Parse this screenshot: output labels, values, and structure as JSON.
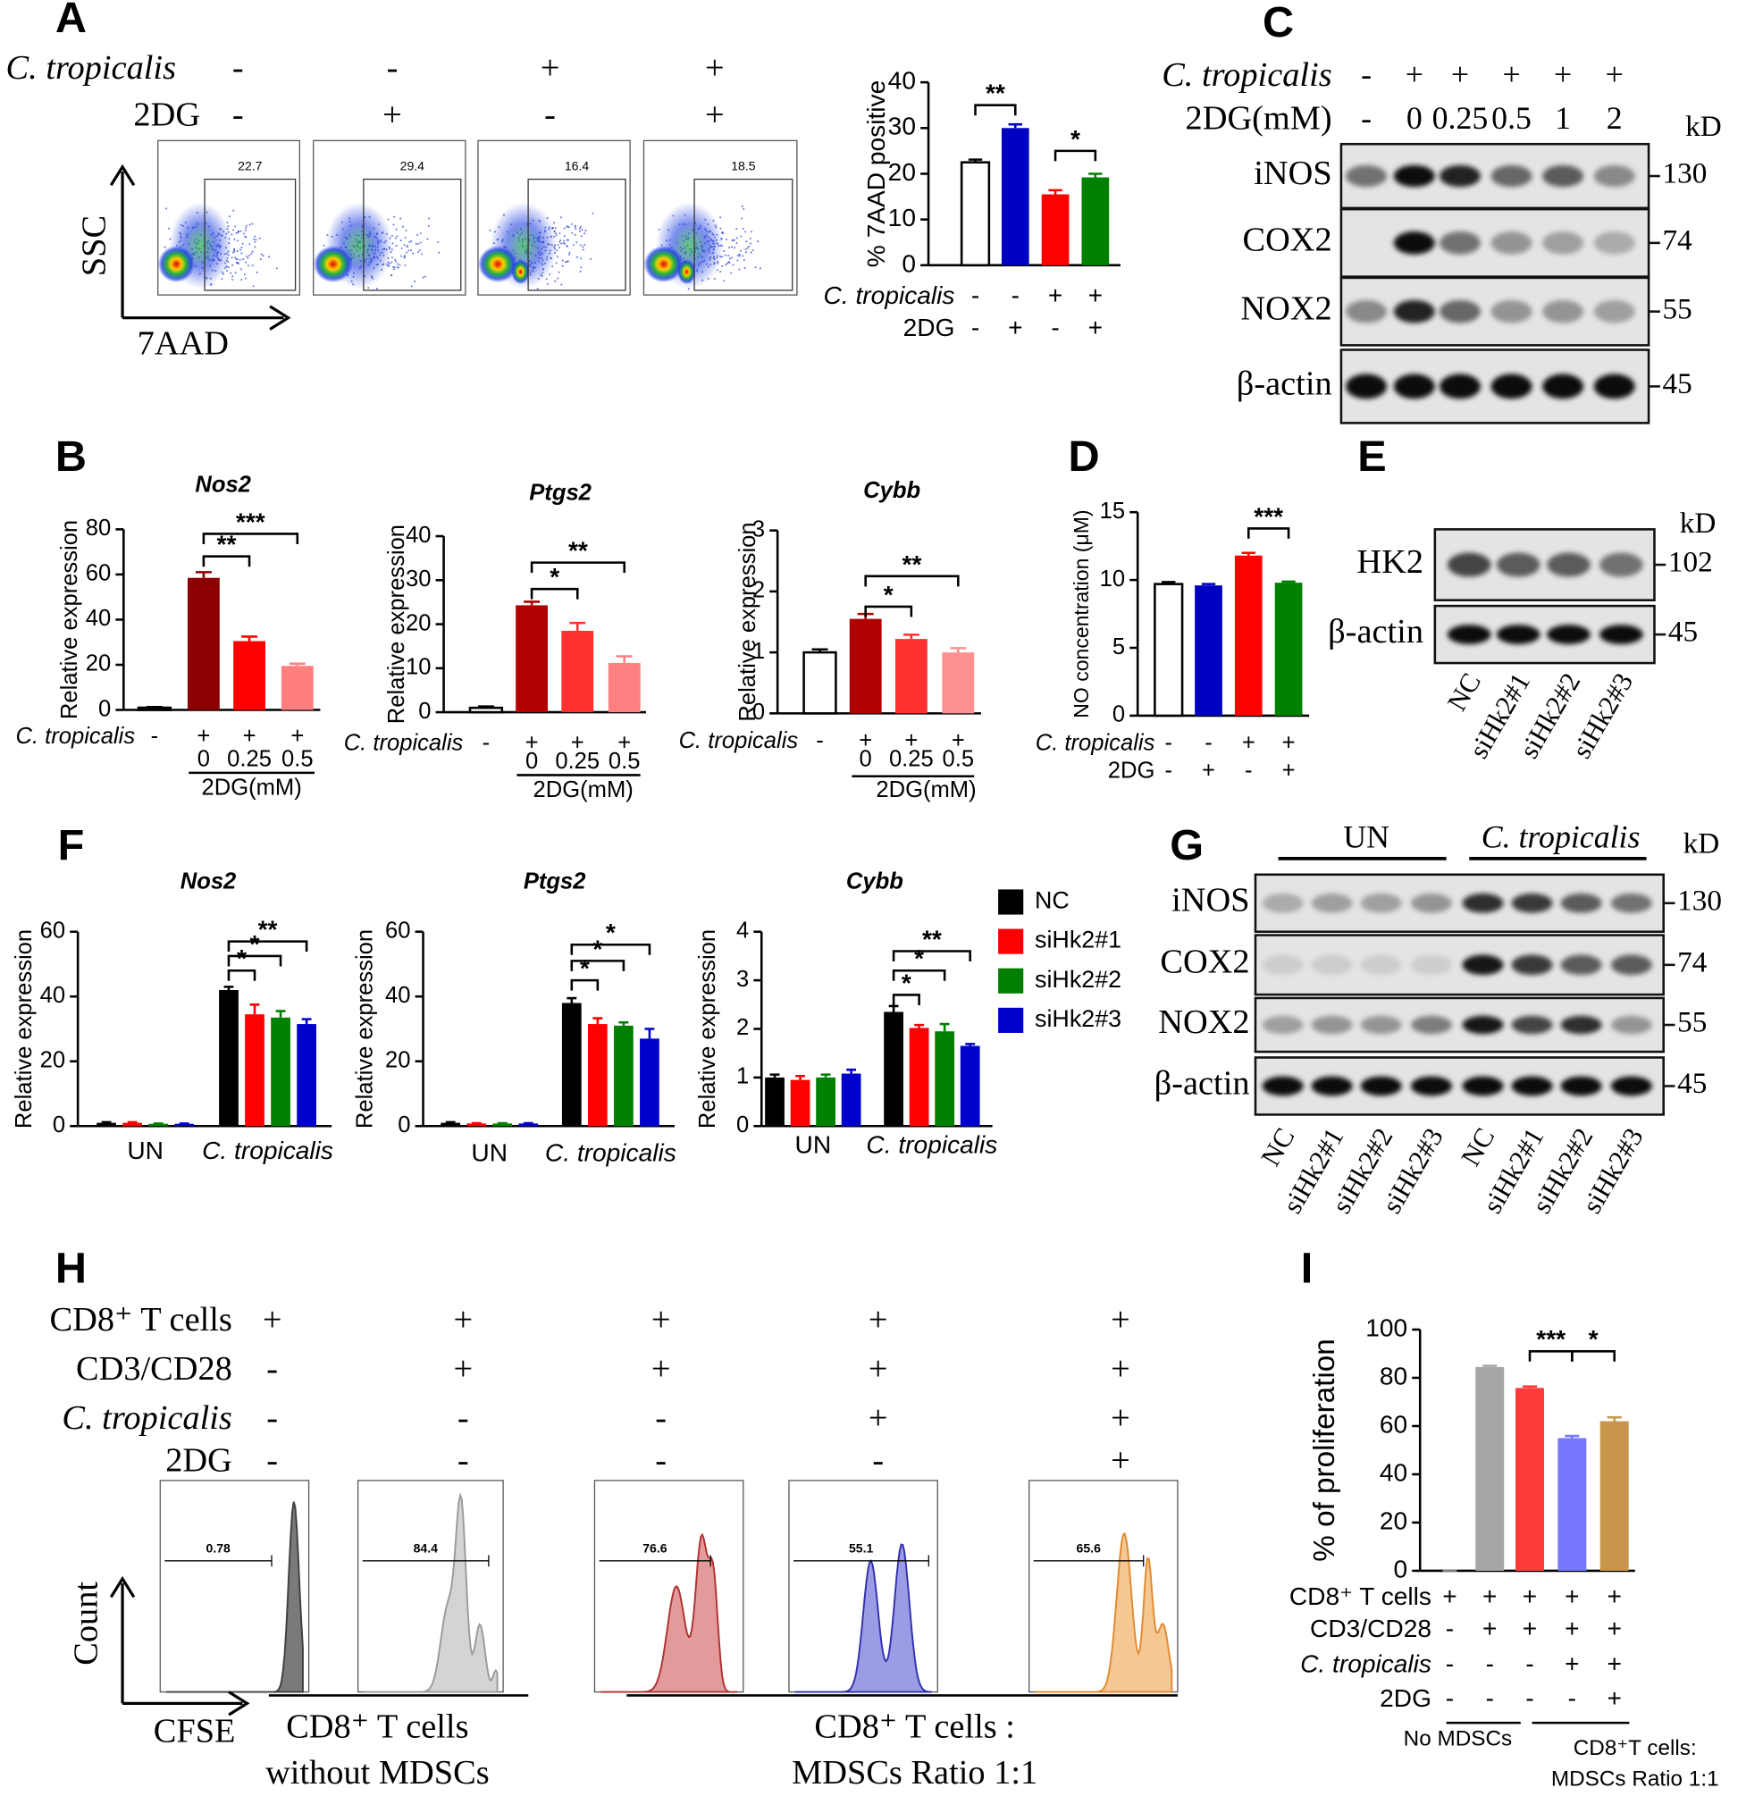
{
  "panel_labels": [
    "A",
    "B",
    "C",
    "D",
    "E",
    "F",
    "G",
    "H",
    "I"
  ],
  "flow_A": {
    "conditions": [
      {
        "label": "C. tropicalis",
        "signs": [
          "-",
          "-",
          "+",
          "+"
        ]
      },
      {
        "label": "2DG",
        "signs": [
          "-",
          "+",
          "-",
          "+"
        ]
      }
    ],
    "gates": [
      22.7,
      29.4,
      16.4,
      18.5
    ],
    "y_axis": "SSC",
    "x_axis": "7AAD"
  },
  "blot_C": {
    "conditions": [
      {
        "label": "C. tropicalis",
        "signs": [
          "-",
          "+",
          "+",
          "+",
          "+",
          "+"
        ]
      },
      {
        "label": "2DG(mM)",
        "signs": [
          "-",
          0,
          0.25,
          0.5,
          1,
          2
        ]
      }
    ],
    "unit": "kD",
    "rows": [
      {
        "label": "iNOS",
        "kd": 130
      },
      {
        "label": "COX2",
        "kd": 74
      },
      {
        "label": "NOX2",
        "kd": 55
      },
      {
        "label": "β-actin",
        "kd": 45
      }
    ]
  },
  "blot_E": {
    "unit": "kD",
    "rows": [
      {
        "label": "HK2",
        "kd": 102
      },
      {
        "label": "β-actin",
        "kd": 45
      }
    ],
    "lanes": [
      "NC",
      "siHk2#1",
      "siHk2#2",
      "siHk2#3"
    ]
  },
  "blot_G": {
    "groups": [
      "UN",
      "C. tropicalis"
    ],
    "unit": "kD",
    "rows": [
      {
        "label": "iNOS",
        "kd": 130
      },
      {
        "label": "COX2",
        "kd": 74
      },
      {
        "label": "NOX2",
        "kd": 55
      },
      {
        "label": "β-actin",
        "kd": 45
      }
    ],
    "lanes": [
      "NC",
      "siHk2#1",
      "siHk2#2",
      "siHk2#3",
      "NC",
      "siHk2#1",
      "siHk2#2",
      "siHk2#3"
    ]
  },
  "flow_H": {
    "conditions": [
      {
        "label": "CD8⁺ T cells",
        "signs": [
          "+",
          "+",
          "+",
          "+",
          "+"
        ]
      },
      {
        "label": "CD3/CD28",
        "signs": [
          "-",
          "+",
          "+",
          "+",
          "+"
        ]
      },
      {
        "label": "C. tropicalis",
        "signs": [
          "-",
          "-",
          "-",
          "+",
          "+"
        ]
      },
      {
        "label": "2DG",
        "signs": [
          "-",
          "-",
          "-",
          "-",
          "+"
        ]
      }
    ],
    "gates": [
      0.78,
      84.4,
      76.6,
      55.1,
      65.6
    ],
    "y_axis": "Count",
    "x_axis": "CFSE",
    "group_labels": [
      [
        "CD8⁺ T cells",
        "without MDSCs"
      ],
      [
        "CD8⁺ T cells :",
        "MDSCs Ratio 1:1"
      ]
    ]
  },
  "chart_data": [
    {
      "type": "bar",
      "ylabel": "% 7AAD positive",
      "ylim": [
        0,
        40
      ],
      "yticks": [
        0,
        10,
        20,
        30,
        40
      ],
      "values": [
        22.5,
        30,
        15.5,
        19.2
      ],
      "errors": [
        0.6,
        0.8,
        0.9,
        0.8
      ],
      "colors": [
        "#ffffff",
        "#0000c0",
        "#ff0000",
        "#008000"
      ],
      "conditions": [
        {
          "label": "C. tropicalis",
          "signs": [
            "-",
            "-",
            "+",
            "+"
          ]
        },
        {
          "label": "2DG",
          "signs": [
            "-",
            "+",
            "-",
            "+"
          ]
        }
      ],
      "annotations": [
        "**",
        "*"
      ]
    },
    {
      "type": "bar",
      "title": "Nos2",
      "ylabel": "Relative expression",
      "ylim": [
        0,
        80
      ],
      "yticks": [
        0,
        20,
        40,
        60,
        80
      ],
      "values": [
        1,
        58.5,
        30.5,
        19.5
      ],
      "errors": [
        0.3,
        2.5,
        2,
        1
      ],
      "colors": [
        "#ffffff",
        "#8b0000",
        "#ff0000",
        "#ff7f7f"
      ],
      "conditions": [
        {
          "label": "C. tropicalis",
          "signs": [
            "-",
            "+",
            "+",
            "+"
          ]
        }
      ],
      "doses": [
        null,
        0,
        0.25,
        0.5
      ],
      "dose_label": "2DG(mM)",
      "annotations": [
        "**",
        "***"
      ]
    },
    {
      "type": "bar",
      "title": "Ptgs2",
      "ylabel": "Relative expression",
      "ylim": [
        0,
        40
      ],
      "yticks": [
        0,
        10,
        20,
        30,
        40
      ],
      "values": [
        1,
        24.3,
        18.5,
        11.2
      ],
      "errors": [
        0.3,
        0.8,
        1.8,
        1.5
      ],
      "colors": [
        "#ffffff",
        "#b00000",
        "#ff3030",
        "#ff8080"
      ],
      "conditions": [
        {
          "label": "C. tropicalis",
          "signs": [
            "-",
            "+",
            "+",
            "+"
          ]
        }
      ],
      "doses": [
        null,
        0,
        0.25,
        0.5
      ],
      "dose_label": "2DG(mM)",
      "annotations": [
        "*",
        "**"
      ]
    },
    {
      "type": "bar",
      "title": "Cybb",
      "ylabel": "Relative expression",
      "ylim": [
        0,
        3
      ],
      "yticks": [
        0,
        1,
        2,
        3
      ],
      "values": [
        1.0,
        1.55,
        1.22,
        1.0
      ],
      "errors": [
        0.05,
        0.08,
        0.07,
        0.07
      ],
      "colors": [
        "#ffffff",
        "#b00000",
        "#ff3030",
        "#ff9090"
      ],
      "conditions": [
        {
          "label": "C. tropicalis",
          "signs": [
            "-",
            "+",
            "+",
            "+"
          ]
        }
      ],
      "doses": [
        null,
        0,
        0.25,
        0.5
      ],
      "dose_label": "2DG(mM)",
      "annotations": [
        "*",
        "**"
      ]
    },
    {
      "type": "bar",
      "ylabel": "NO concentration (μM)",
      "ylim": [
        0,
        15
      ],
      "yticks": [
        0,
        5,
        10,
        15
      ],
      "values": [
        9.7,
        9.6,
        11.8,
        9.8
      ],
      "errors": [
        0.15,
        0.1,
        0.2,
        0.08
      ],
      "colors": [
        "#ffffff",
        "#0000c0",
        "#ff0000",
        "#008000"
      ],
      "conditions": [
        {
          "label": "C. tropicalis",
          "signs": [
            "-",
            "-",
            "+",
            "+"
          ]
        },
        {
          "label": "2DG",
          "signs": [
            "-",
            "+",
            "-",
            "+"
          ]
        }
      ],
      "annotations": [
        "***"
      ]
    },
    {
      "type": "grouped_bar",
      "title": "Nos2",
      "ylabel": "Relative expression",
      "ylim": [
        0,
        60
      ],
      "yticks": [
        0,
        20,
        40,
        60
      ],
      "categories": [
        "UN",
        "C. tropicalis"
      ],
      "series": [
        {
          "color": "#000000",
          "values": [
            1,
            42
          ],
          "errors": [
            0.2,
            1
          ]
        },
        {
          "color": "#ff0000",
          "values": [
            1,
            34.5
          ],
          "errors": [
            0.2,
            3
          ]
        },
        {
          "color": "#008000",
          "values": [
            0.7,
            33.5
          ],
          "errors": [
            0.1,
            2
          ]
        },
        {
          "color": "#0000cc",
          "values": [
            0.7,
            31.5
          ],
          "errors": [
            0.1,
            1.5
          ]
        }
      ],
      "annotations": [
        "*",
        "*",
        "**"
      ]
    },
    {
      "type": "grouped_bar",
      "title": "Ptgs2",
      "ylabel": "Relative expression",
      "ylim": [
        0,
        60
      ],
      "yticks": [
        0,
        20,
        40,
        60
      ],
      "categories": [
        "UN",
        "C. tropicalis"
      ],
      "series": [
        {
          "color": "#000000",
          "values": [
            1,
            38
          ],
          "errors": [
            0.2,
            1.5
          ]
        },
        {
          "color": "#ff0000",
          "values": [
            0.8,
            31.5
          ],
          "errors": [
            0.1,
            1.8
          ]
        },
        {
          "color": "#008000",
          "values": [
            0.8,
            31
          ],
          "errors": [
            0.1,
            1
          ]
        },
        {
          "color": "#0000cc",
          "values": [
            0.8,
            27
          ],
          "errors": [
            0.1,
            3
          ]
        }
      ],
      "annotations": [
        "*",
        "*",
        "*"
      ]
    },
    {
      "type": "grouped_bar",
      "title": "Cybb",
      "ylabel": "Relative expression",
      "ylim": [
        0,
        4
      ],
      "yticks": [
        0,
        1,
        2,
        3,
        4
      ],
      "categories": [
        "UN",
        "C. tropicalis"
      ],
      "legend": "right",
      "series": [
        {
          "name": "NC",
          "color": "#000000",
          "values": [
            1.0,
            2.35
          ],
          "errors": [
            0.06,
            0.12
          ]
        },
        {
          "name": "siHk2#1",
          "color": "#ff0000",
          "values": [
            0.95,
            2.02
          ],
          "errors": [
            0.08,
            0.06
          ]
        },
        {
          "name": "siHk2#2",
          "color": "#008000",
          "values": [
            1.0,
            1.95
          ],
          "errors": [
            0.06,
            0.15
          ]
        },
        {
          "name": "siHk2#3",
          "color": "#0000cc",
          "values": [
            1.08,
            1.65
          ],
          "errors": [
            0.08,
            0.04
          ]
        }
      ],
      "annotations": [
        "*",
        "*",
        "**"
      ]
    },
    {
      "type": "bar",
      "ylabel": "% of proliferation",
      "ylim": [
        0,
        100
      ],
      "yticks": [
        0,
        20,
        40,
        60,
        80,
        100
      ],
      "values": [
        0,
        84.5,
        75.8,
        55,
        62
      ],
      "errors": [
        0,
        0.5,
        0.6,
        0.9,
        1.6
      ],
      "colors": [
        "#808080",
        "#a6a6a6",
        "#ff3c3c",
        "#7878ff",
        "#c8964b"
      ],
      "conditions": [
        {
          "label": "CD8⁺ T cells",
          "signs": [
            "+",
            "+",
            "+",
            "+",
            "+"
          ]
        },
        {
          "label": "CD3/CD28",
          "signs": [
            "-",
            "+",
            "+",
            "+",
            "+"
          ]
        },
        {
          "label": "C. tropicalis",
          "signs": [
            "-",
            "-",
            "-",
            "+",
            "+"
          ]
        },
        {
          "label": "2DG",
          "signs": [
            "-",
            "-",
            "-",
            "-",
            "+"
          ]
        }
      ],
      "group_labels": [
        [
          "No MDSCs"
        ],
        [
          "CD8⁺T cells:",
          "MDSCs Ratio 1:1"
        ]
      ],
      "annotations": [
        "***",
        "*"
      ]
    }
  ]
}
